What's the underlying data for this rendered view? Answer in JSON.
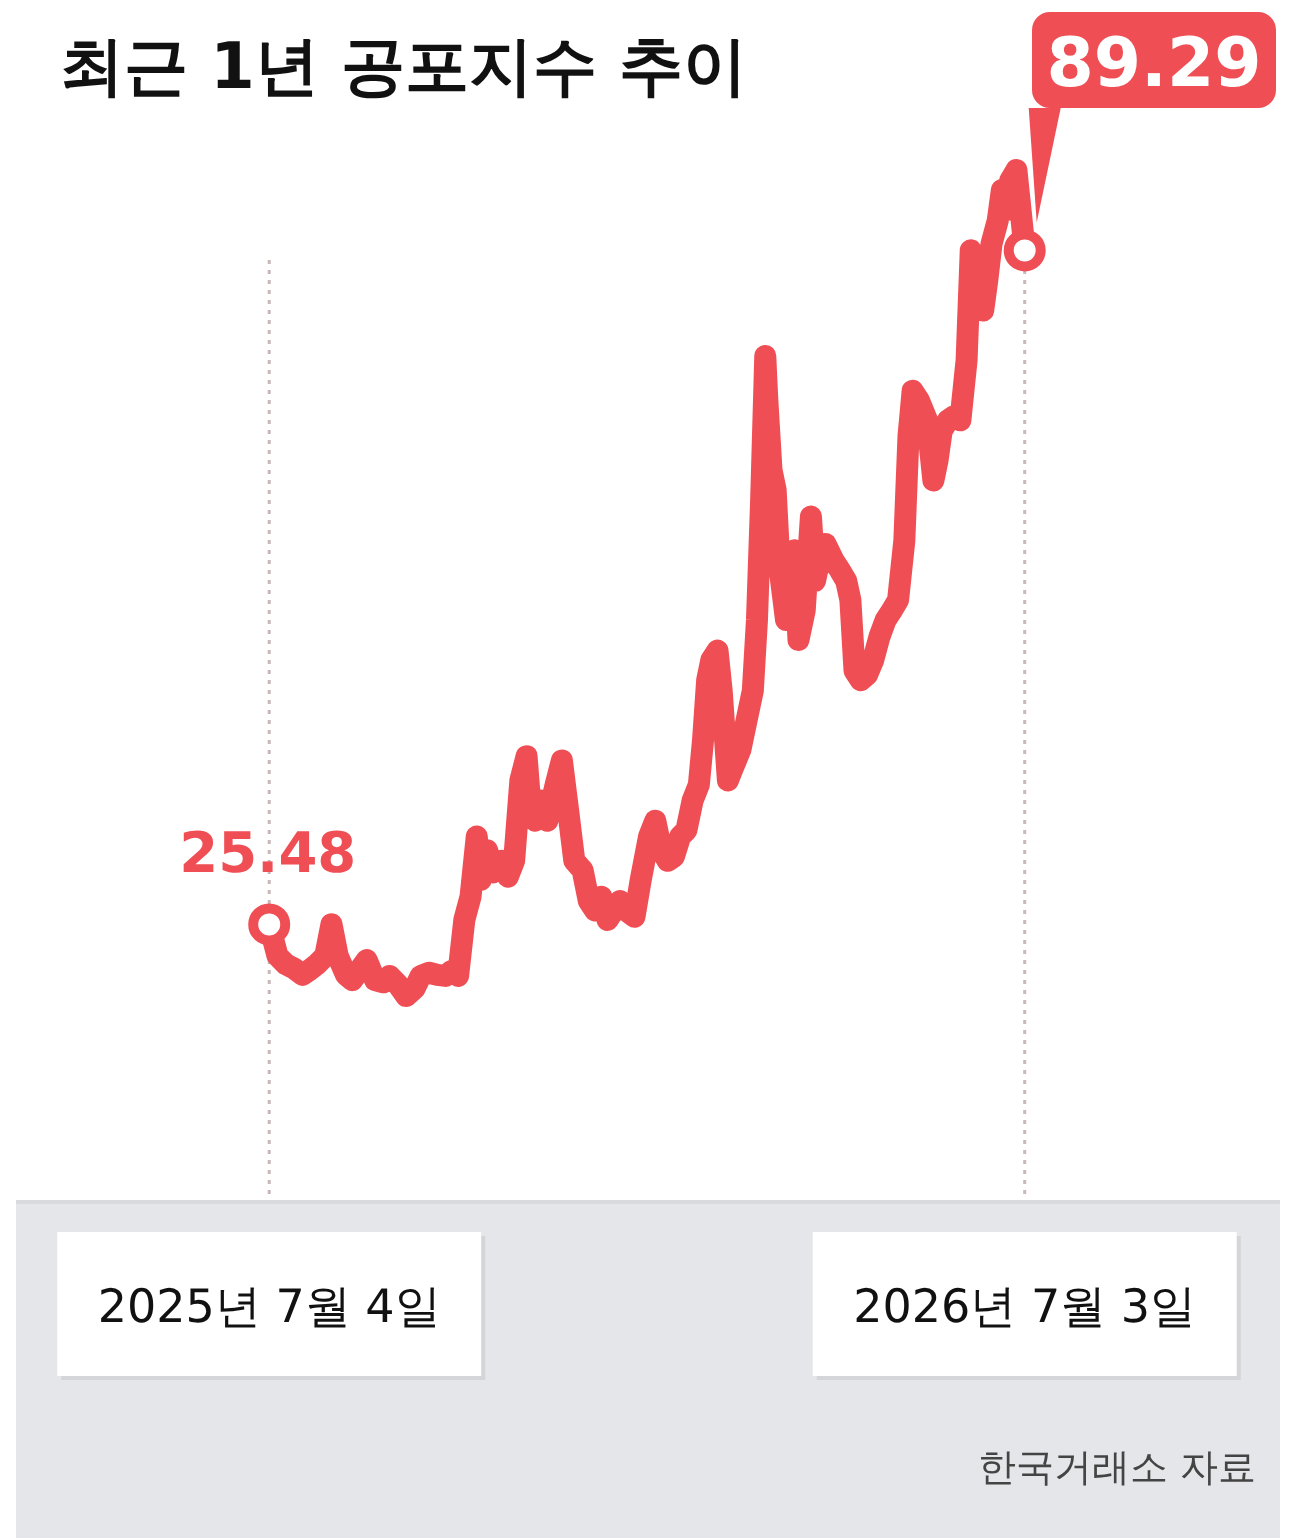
{
  "chart_data": {
    "type": "line",
    "title": "최근 1년 공포지수 추이",
    "annotations": [
      "한국거래소 자료"
    ],
    "grid": "x",
    "xlim": [
      "2025-03-04",
      "2026-11-03"
    ],
    "xticks": [
      {
        "value": "2025-07-04",
        "label": "2025년 7월 4일"
      },
      {
        "value": "2026-07-03",
        "label": "2026년 7월 3일"
      }
    ],
    "series": [
      {
        "color": "#f04e55",
        "x": [
          "2025-07-04",
          "2025-07-08",
          "2025-07-12",
          "2025-07-16",
          "2025-07-20",
          "2025-07-23",
          "2025-07-27",
          "2025-07-31",
          "2025-08-03",
          "2025-08-06",
          "2025-08-10",
          "2025-08-13",
          "2025-08-17",
          "2025-08-20",
          "2025-08-24",
          "2025-08-28",
          "2025-08-31",
          "2025-09-04",
          "2025-09-08",
          "2025-09-12",
          "2025-09-15",
          "2025-09-19",
          "2025-09-23",
          "2025-09-27",
          "2025-09-30",
          "2025-10-03",
          "2025-10-06",
          "2025-10-09",
          "2025-10-12",
          "2025-10-14",
          "2025-10-17",
          "2025-10-20",
          "2025-10-24",
          "2025-10-27",
          "2025-10-30",
          "2025-11-02",
          "2025-11-05",
          "2025-11-07",
          "2025-11-09",
          "2025-11-12",
          "2025-11-15",
          "2025-11-19",
          "2025-11-22",
          "2025-11-25",
          "2025-11-28",
          "2025-12-02",
          "2025-12-05",
          "2025-12-08",
          "2025-12-11",
          "2025-12-14",
          "2025-12-17",
          "2025-12-20",
          "2025-12-23",
          "2025-12-27",
          "2025-12-30",
          "2026-01-03",
          "2026-01-06",
          "2026-01-09",
          "2026-01-12",
          "2026-01-15",
          "2026-01-18",
          "2026-01-21",
          "2026-01-24",
          "2026-01-27",
          "2026-01-29",
          "2026-01-31",
          "2026-02-02",
          "2026-02-05",
          "2026-02-07",
          "2026-02-10",
          "2026-02-12",
          "2026-02-16",
          "2026-02-19",
          "2026-02-22",
          "2026-02-24",
          "2026-02-26",
          "2026-02-28",
          "2026-03-01",
          "2026-03-03",
          "2026-03-05",
          "2026-03-07",
          "2026-03-10",
          "2026-03-12",
          "2026-03-14",
          "2026-03-16",
          "2026-03-19",
          "2026-03-22",
          "2026-03-24",
          "2026-03-26",
          "2026-03-29",
          "2026-04-02",
          "2026-04-05",
          "2026-04-08",
          "2026-04-10",
          "2026-04-12",
          "2026-04-15",
          "2026-04-18",
          "2026-04-21",
          "2026-04-24",
          "2026-04-27",
          "2026-04-30",
          "2026-05-03",
          "2026-05-06",
          "2026-05-08",
          "2026-05-10",
          "2026-05-13",
          "2026-05-17",
          "2026-05-20",
          "2026-05-22",
          "2026-05-24",
          "2026-05-27",
          "2026-05-30",
          "2026-06-02",
          "2026-06-05",
          "2026-06-07",
          "2026-06-09",
          "2026-06-11",
          "2026-06-13",
          "2026-06-15",
          "2026-06-17",
          "2026-06-20",
          "2026-06-22",
          "2026-06-24",
          "2026-06-26",
          "2026-06-29",
          "2026-07-01",
          "2026-07-03"
        ],
        "values": [
          25.48,
          22.5,
          21.7,
          21.3,
          20.7,
          21.1,
          21.7,
          22.5,
          25.5,
          22.5,
          20.7,
          20.2,
          21.3,
          22.1,
          20.2,
          20.0,
          20.6,
          19.8,
          18.7,
          19.4,
          20.6,
          20.9,
          20.7,
          20.6,
          21.1,
          20.6,
          25.9,
          28.1,
          33.8,
          29.7,
          32.5,
          30.4,
          31.5,
          30.0,
          31.5,
          39.1,
          41.4,
          36.3,
          35.3,
          37.2,
          35.3,
          38.7,
          41.0,
          36.3,
          31.5,
          30.6,
          27.7,
          26.8,
          28.1,
          25.9,
          26.8,
          27.7,
          26.8,
          26.2,
          29.7,
          33.8,
          35.3,
          32.5,
          31.5,
          31.9,
          33.8,
          34.4,
          37.2,
          38.7,
          42.9,
          48.6,
          50.5,
          51.4,
          47.6,
          39.1,
          40.1,
          42.0,
          44.8,
          47.6,
          54.3,
          65.6,
          79.3,
          75.1,
          68.5,
          66.6,
          59.0,
          54.3,
          56.2,
          60.9,
          52.4,
          55.2,
          64.1,
          58.0,
          59.9,
          61.5,
          59.9,
          59.0,
          58.0,
          56.2,
          49.5,
          48.6,
          49.1,
          50.5,
          52.7,
          54.3,
          55.2,
          56.2,
          61.8,
          71.7,
          76.0,
          75.1,
          73.2,
          67.5,
          69.4,
          72.2,
          73.2,
          73.6,
          73.2,
          78.9,
          89.3,
          88.7,
          88.3,
          83.6,
          86.5,
          89.9,
          92.1,
          95.0,
          93.1,
          95.9,
          96.9,
          93.1,
          89.29
        ],
        "value_labels": [
          "25.48",
          null,
          null,
          null,
          null,
          null,
          null,
          null,
          null,
          null,
          null,
          null,
          null,
          null,
          null,
          null,
          null,
          null,
          null,
          null,
          null,
          null,
          null,
          null,
          null,
          null,
          null,
          null,
          null,
          null,
          null,
          null,
          null,
          null,
          null,
          null,
          null,
          null,
          null,
          null,
          null,
          null,
          null,
          null,
          null,
          null,
          null,
          null,
          null,
          null,
          null,
          null,
          null,
          null,
          null,
          null,
          null,
          null,
          null,
          null,
          null,
          null,
          null,
          null,
          null,
          null,
          null,
          null,
          null,
          null,
          null,
          null,
          null,
          null,
          null,
          null,
          null,
          null,
          null,
          null,
          null,
          null,
          null,
          null,
          null,
          null,
          null,
          null,
          null,
          null,
          null,
          null,
          null,
          null,
          null,
          null,
          null,
          null,
          null,
          null,
          null,
          null,
          null,
          null,
          null,
          null,
          null,
          null,
          null,
          null,
          null,
          null,
          null,
          null,
          null,
          null,
          null,
          null,
          null,
          null,
          null,
          null,
          null,
          null,
          null,
          null,
          "89.29"
        ]
      }
    ]
  }
}
